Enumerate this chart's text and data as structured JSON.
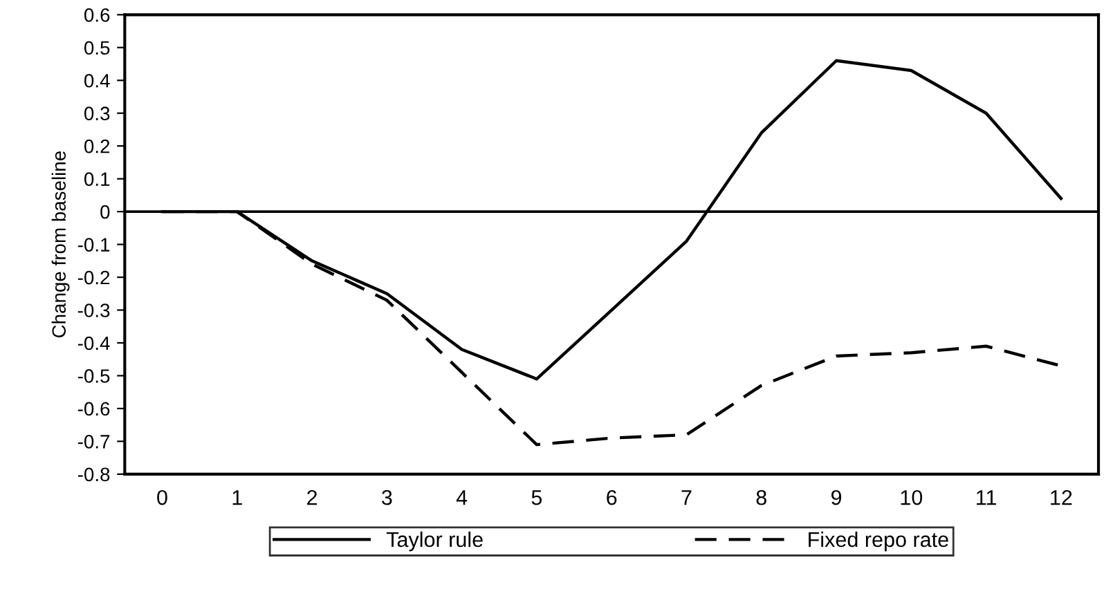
{
  "chart_data": {
    "type": "line",
    "ylabel": "Change from baseline",
    "categories": [
      "0",
      "1",
      "2",
      "3",
      "4",
      "5",
      "6",
      "7",
      "8",
      "9",
      "10",
      "11",
      "12"
    ],
    "series": [
      {
        "name": "Taylor rule",
        "color": "#000000",
        "line_style": "solid",
        "values": [
          0,
          0,
          -0.15,
          -0.25,
          -0.42,
          -0.51,
          -0.3,
          -0.09,
          0.24,
          0.46,
          0.43,
          0.3,
          0.04
        ]
      },
      {
        "name": "Fixed repo rate",
        "color": "#000000",
        "line_style": "dashed",
        "values": [
          0,
          0,
          -0.16,
          -0.27,
          -0.49,
          -0.71,
          -0.69,
          -0.68,
          -0.53,
          -0.44,
          -0.43,
          -0.41,
          -0.47
        ]
      }
    ],
    "ylim": [
      -0.8,
      0.6
    ],
    "yticks": [
      -0.8,
      -0.7,
      -0.6,
      -0.5,
      -0.4,
      -0.3,
      -0.2,
      -0.1,
      0,
      0.1,
      0.2,
      0.3,
      0.4,
      0.5,
      0.6
    ],
    "ref_lines": [
      {
        "axis": "y",
        "value": 0,
        "color": "#000000"
      }
    ],
    "grid": false,
    "legend": "bottom",
    "marker": "none"
  }
}
